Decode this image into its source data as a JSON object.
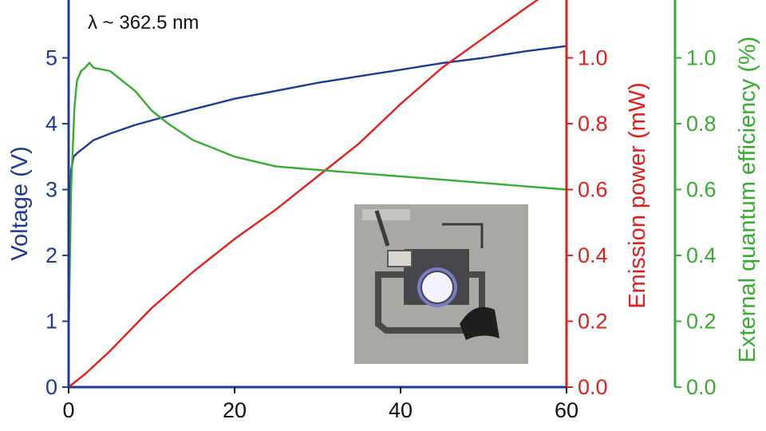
{
  "chart_data": {
    "type": "line",
    "annotation": "λ ~ 362.5 nm",
    "xlabel": "",
    "xlim": [
      0,
      60
    ],
    "x_ticks": [
      "0",
      "20",
      "40",
      "60"
    ],
    "axes": {
      "left": {
        "label": "Voltage (V)",
        "ylim": [
          0,
          6
        ],
        "ticks": [
          "0",
          "1",
          "2",
          "3",
          "4",
          "5"
        ],
        "color": "#1f3a93"
      },
      "right1": {
        "label": "Emission power (mW)",
        "ylim": [
          0,
          1.2
        ],
        "ticks": [
          "0.0",
          "0.2",
          "0.4",
          "0.6",
          "0.8",
          "1.0"
        ],
        "color": "#e0201c"
      },
      "right2": {
        "label": "External quantum efficiency (%)",
        "ylim": [
          0,
          1.2
        ],
        "ticks": [
          "0.0",
          "0.2",
          "0.4",
          "0.6",
          "0.8",
          "1.0"
        ],
        "color": "#3aaa35"
      }
    },
    "series": [
      {
        "axis": "left",
        "color": "#1f3a93",
        "x": [
          0,
          0.1,
          0.3,
          0.6,
          1,
          2,
          3,
          5,
          8,
          10,
          15,
          20,
          25,
          30,
          35,
          40,
          45,
          50,
          55,
          60
        ],
        "y": [
          0.7,
          2.2,
          3.3,
          3.5,
          3.55,
          3.65,
          3.75,
          3.85,
          3.98,
          4.05,
          4.22,
          4.38,
          4.5,
          4.62,
          4.72,
          4.82,
          4.92,
          5.0,
          5.1,
          5.18
        ]
      },
      {
        "axis": "right1",
        "color": "#e0201c",
        "x": [
          0,
          2,
          5,
          10,
          15,
          20,
          25,
          30,
          35,
          40,
          45,
          50,
          55,
          59
        ],
        "y": [
          0,
          0.04,
          0.11,
          0.24,
          0.35,
          0.45,
          0.54,
          0.64,
          0.74,
          0.86,
          0.97,
          1.06,
          1.15,
          1.22
        ]
      },
      {
        "axis": "right2",
        "color": "#3aaa35",
        "x": [
          0,
          0.3,
          0.7,
          1,
          1.5,
          2,
          2.5,
          3,
          4,
          5,
          6,
          8,
          10,
          12,
          15,
          20,
          25,
          30,
          35,
          40,
          45,
          50,
          55,
          60
        ],
        "y": [
          0.15,
          0.6,
          0.85,
          0.93,
          0.96,
          0.97,
          0.985,
          0.97,
          0.965,
          0.96,
          0.94,
          0.9,
          0.84,
          0.8,
          0.75,
          0.7,
          0.67,
          0.66,
          0.65,
          0.64,
          0.63,
          0.62,
          0.61,
          0.6
        ]
      }
    ]
  },
  "inset": {
    "description": "device photograph"
  }
}
